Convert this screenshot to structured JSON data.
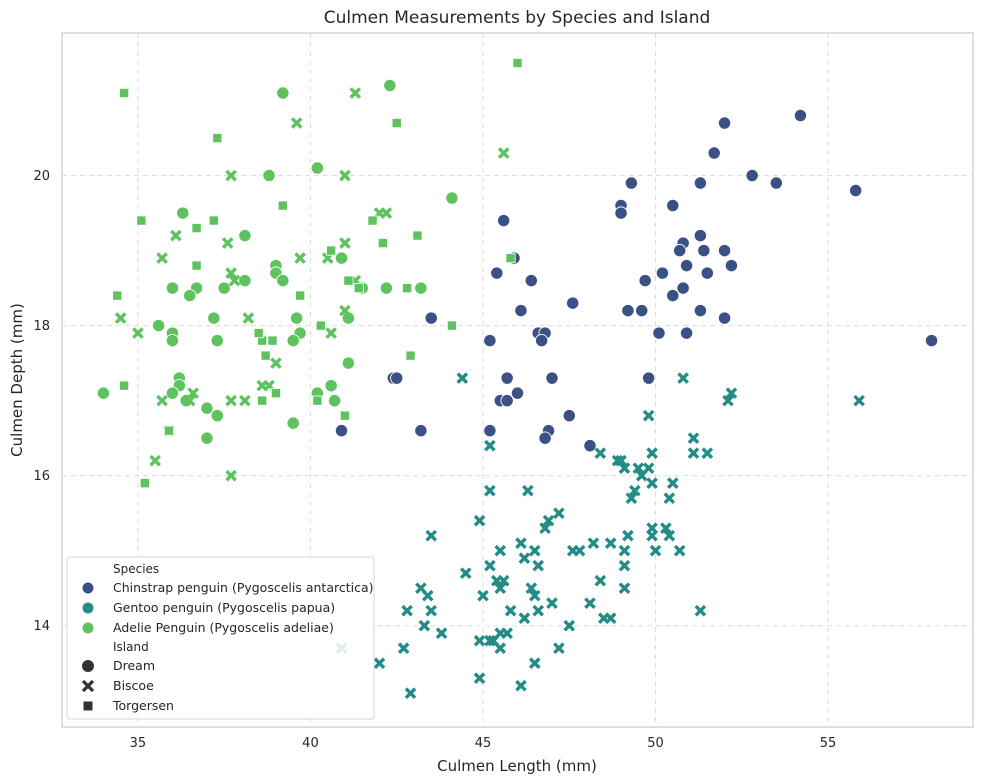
{
  "chart_data": {
    "type": "scatter",
    "title": "Culmen Measurements by Species and Island",
    "xlabel": "Culmen Length (mm)",
    "ylabel": "Culmen Depth (mm)",
    "xlim": [
      32.8,
      59.2
    ],
    "ylim": [
      12.65,
      21.9
    ],
    "xticks": [
      35,
      40,
      45,
      50,
      55
    ],
    "yticks": [
      14,
      16,
      18,
      20
    ],
    "grid": true,
    "legend_placement": "lower-left",
    "colors": {
      "Chinstrap": "#3b5185",
      "Gentoo": "#238c86",
      "Adelie": "#5ec25e"
    },
    "legend": {
      "species_title": "Species",
      "species": [
        {
          "key": "Chinstrap",
          "label": "Chinstrap penguin (Pygoscelis antarctica)"
        },
        {
          "key": "Gentoo",
          "label": "Gentoo penguin (Pygoscelis papua)"
        },
        {
          "key": "Adelie",
          "label": "Adelie Penguin (Pygoscelis adeliae)"
        }
      ],
      "island_title": "Island",
      "islands": [
        {
          "key": "Dream",
          "label": "Dream",
          "marker": "circle"
        },
        {
          "key": "Biscoe",
          "label": "Biscoe",
          "marker": "x"
        },
        {
          "key": "Torgersen",
          "label": "Torgersen",
          "marker": "square"
        }
      ]
    },
    "series": [
      {
        "species": "Chinstrap",
        "island": "Dream",
        "points": [
          [
            54.2,
            20.8
          ],
          [
            52.0,
            20.7
          ],
          [
            51.7,
            20.3
          ],
          [
            52.8,
            20.0
          ],
          [
            53.5,
            19.9
          ],
          [
            51.3,
            19.9
          ],
          [
            49.3,
            19.9
          ],
          [
            55.8,
            19.8
          ],
          [
            50.5,
            19.6
          ],
          [
            49.0,
            19.6
          ],
          [
            49.0,
            19.5
          ],
          [
            45.6,
            19.4
          ],
          [
            51.3,
            19.2
          ],
          [
            50.8,
            19.1
          ],
          [
            50.7,
            19.0
          ],
          [
            51.4,
            19.0
          ],
          [
            52.0,
            19.0
          ],
          [
            45.9,
            18.9
          ],
          [
            50.9,
            18.8
          ],
          [
            52.2,
            18.8
          ],
          [
            45.4,
            18.7
          ],
          [
            50.2,
            18.7
          ],
          [
            51.5,
            18.7
          ],
          [
            46.4,
            18.6
          ],
          [
            49.7,
            18.6
          ],
          [
            50.8,
            18.5
          ],
          [
            50.5,
            18.4
          ],
          [
            47.6,
            18.3
          ],
          [
            46.1,
            18.2
          ],
          [
            49.2,
            18.2
          ],
          [
            49.6,
            18.2
          ],
          [
            51.3,
            18.2
          ],
          [
            43.5,
            18.1
          ],
          [
            52.0,
            18.1
          ],
          [
            50.1,
            17.9
          ],
          [
            50.9,
            17.9
          ],
          [
            46.6,
            17.9
          ],
          [
            46.8,
            17.9
          ],
          [
            46.7,
            17.8
          ],
          [
            45.2,
            17.8
          ],
          [
            58.0,
            17.8
          ],
          [
            45.7,
            17.3
          ],
          [
            42.4,
            17.3
          ],
          [
            42.5,
            17.3
          ],
          [
            47.0,
            17.3
          ],
          [
            49.8,
            17.3
          ],
          [
            46.0,
            17.1
          ],
          [
            45.5,
            17.0
          ],
          [
            45.7,
            17.0
          ],
          [
            47.5,
            16.8
          ],
          [
            40.9,
            16.6
          ],
          [
            43.2,
            16.6
          ],
          [
            45.2,
            16.6
          ],
          [
            46.9,
            16.6
          ],
          [
            46.8,
            16.5
          ],
          [
            48.1,
            16.4
          ]
        ]
      },
      {
        "species": "Gentoo",
        "island": "Biscoe",
        "points": [
          [
            50.8,
            17.3
          ],
          [
            44.4,
            17.3
          ],
          [
            52.2,
            17.1
          ],
          [
            52.1,
            17.0
          ],
          [
            55.9,
            17.0
          ],
          [
            49.8,
            16.8
          ],
          [
            51.1,
            16.5
          ],
          [
            45.2,
            16.4
          ],
          [
            49.9,
            16.3
          ],
          [
            51.1,
            16.3
          ],
          [
            51.5,
            16.3
          ],
          [
            48.4,
            16.3
          ],
          [
            48.9,
            16.2
          ],
          [
            49.1,
            16.1
          ],
          [
            49.8,
            16.1
          ],
          [
            49.0,
            16.2
          ],
          [
            49.5,
            16.1
          ],
          [
            49.6,
            16.0
          ],
          [
            49.9,
            15.9
          ],
          [
            50.5,
            15.9
          ],
          [
            45.2,
            15.8
          ],
          [
            46.3,
            15.8
          ],
          [
            49.4,
            15.8
          ],
          [
            49.3,
            15.7
          ],
          [
            50.4,
            15.7
          ],
          [
            47.2,
            15.5
          ],
          [
            46.9,
            15.4
          ],
          [
            44.9,
            15.4
          ],
          [
            46.8,
            15.3
          ],
          [
            49.9,
            15.3
          ],
          [
            50.3,
            15.3
          ],
          [
            43.5,
            15.2
          ],
          [
            49.2,
            15.2
          ],
          [
            49.9,
            15.2
          ],
          [
            50.4,
            15.2
          ],
          [
            45.2,
            14.8
          ],
          [
            46.1,
            15.1
          ],
          [
            48.2,
            15.1
          ],
          [
            48.7,
            15.1
          ],
          [
            47.6,
            15.0
          ],
          [
            47.8,
            15.0
          ],
          [
            49.1,
            15.0
          ],
          [
            50.0,
            15.0
          ],
          [
            50.7,
            15.0
          ],
          [
            45.5,
            15.0
          ],
          [
            46.5,
            15.0
          ],
          [
            46.2,
            14.9
          ],
          [
            49.1,
            14.8
          ],
          [
            44.5,
            14.7
          ],
          [
            46.6,
            14.8
          ],
          [
            45.6,
            14.6
          ],
          [
            48.4,
            14.6
          ],
          [
            45.4,
            14.6
          ],
          [
            46.4,
            14.5
          ],
          [
            45.5,
            14.5
          ],
          [
            49.1,
            14.5
          ],
          [
            43.2,
            14.5
          ],
          [
            45.0,
            14.4
          ],
          [
            46.5,
            14.4
          ],
          [
            43.4,
            14.4
          ],
          [
            47.0,
            14.3
          ],
          [
            48.1,
            14.3
          ],
          [
            46.6,
            14.2
          ],
          [
            43.5,
            14.2
          ],
          [
            42.8,
            14.2
          ],
          [
            45.8,
            14.2
          ],
          [
            51.3,
            14.2
          ],
          [
            46.2,
            14.1
          ],
          [
            48.5,
            14.1
          ],
          [
            48.7,
            14.1
          ],
          [
            47.5,
            14.0
          ],
          [
            43.3,
            14.0
          ],
          [
            45.7,
            13.9
          ],
          [
            43.8,
            13.9
          ],
          [
            45.5,
            13.9
          ],
          [
            45.2,
            13.8
          ],
          [
            44.9,
            13.8
          ],
          [
            45.3,
            13.8
          ],
          [
            45.5,
            13.7
          ],
          [
            47.2,
            13.7
          ],
          [
            42.7,
            13.7
          ],
          [
            40.9,
            13.7
          ],
          [
            42.0,
            13.5
          ],
          [
            46.5,
            13.5
          ],
          [
            44.9,
            13.3
          ],
          [
            46.1,
            13.2
          ],
          [
            42.9,
            13.1
          ]
        ]
      },
      {
        "species": "Adelie",
        "island": "Dream",
        "points": [
          [
            42.3,
            21.2
          ],
          [
            39.2,
            21.1
          ],
          [
            40.2,
            20.1
          ],
          [
            38.8,
            20.0
          ],
          [
            44.1,
            19.7
          ],
          [
            36.3,
            19.5
          ],
          [
            38.1,
            19.2
          ],
          [
            39.0,
            18.8
          ],
          [
            40.9,
            18.9
          ],
          [
            39.0,
            18.7
          ],
          [
            38.1,
            18.6
          ],
          [
            39.2,
            18.6
          ],
          [
            36.0,
            18.5
          ],
          [
            36.7,
            18.5
          ],
          [
            37.5,
            18.5
          ],
          [
            41.5,
            18.5
          ],
          [
            42.2,
            18.5
          ],
          [
            43.2,
            18.5
          ],
          [
            36.5,
            18.4
          ],
          [
            35.6,
            18.0
          ],
          [
            36.0,
            17.9
          ],
          [
            37.3,
            17.8
          ],
          [
            36.0,
            17.8
          ],
          [
            37.2,
            18.1
          ],
          [
            39.6,
            18.1
          ],
          [
            41.1,
            18.1
          ],
          [
            39.7,
            17.9
          ],
          [
            39.5,
            17.8
          ],
          [
            41.1,
            17.5
          ],
          [
            36.2,
            17.3
          ],
          [
            36.2,
            17.2
          ],
          [
            40.6,
            17.2
          ],
          [
            34.0,
            17.1
          ],
          [
            36.0,
            17.1
          ],
          [
            40.2,
            17.1
          ],
          [
            36.4,
            17.0
          ],
          [
            40.7,
            17.0
          ],
          [
            37.0,
            16.9
          ],
          [
            37.3,
            16.8
          ],
          [
            39.5,
            16.7
          ],
          [
            37.0,
            16.5
          ]
        ]
      },
      {
        "species": "Adelie",
        "island": "Biscoe",
        "points": [
          [
            41.3,
            21.1
          ],
          [
            39.6,
            20.7
          ],
          [
            45.6,
            20.3
          ],
          [
            41.0,
            20.0
          ],
          [
            37.7,
            20.0
          ],
          [
            42.2,
            19.5
          ],
          [
            42.0,
            19.5
          ],
          [
            36.1,
            19.2
          ],
          [
            37.6,
            19.1
          ],
          [
            41.0,
            19.1
          ],
          [
            39.7,
            18.9
          ],
          [
            35.7,
            18.9
          ],
          [
            40.5,
            18.9
          ],
          [
            41.3,
            18.6
          ],
          [
            37.8,
            18.6
          ],
          [
            37.7,
            18.7
          ],
          [
            34.5,
            18.1
          ],
          [
            41.0,
            18.2
          ],
          [
            38.2,
            18.1
          ],
          [
            35.0,
            17.9
          ],
          [
            40.6,
            17.9
          ],
          [
            37.7,
            17.0
          ],
          [
            38.8,
            17.2
          ],
          [
            38.6,
            17.2
          ],
          [
            39.0,
            17.5
          ],
          [
            36.6,
            17.1
          ],
          [
            36.5,
            17.0
          ],
          [
            35.7,
            17.0
          ],
          [
            35.9,
            16.6
          ],
          [
            38.1,
            17.0
          ],
          [
            35.5,
            16.2
          ],
          [
            37.7,
            16.0
          ]
        ]
      },
      {
        "species": "Adelie",
        "island": "Torgersen",
        "points": [
          [
            34.6,
            21.1
          ],
          [
            46.0,
            21.5
          ],
          [
            37.3,
            20.5
          ],
          [
            42.5,
            20.7
          ],
          [
            39.2,
            19.6
          ],
          [
            35.1,
            19.4
          ],
          [
            37.2,
            19.4
          ],
          [
            36.7,
            19.3
          ],
          [
            41.8,
            19.4
          ],
          [
            43.1,
            19.2
          ],
          [
            42.1,
            19.1
          ],
          [
            40.6,
            19.0
          ],
          [
            45.8,
            18.9
          ],
          [
            36.7,
            18.8
          ],
          [
            41.1,
            18.6
          ],
          [
            34.4,
            18.4
          ],
          [
            39.7,
            18.4
          ],
          [
            42.8,
            18.5
          ],
          [
            41.4,
            18.5
          ],
          [
            40.3,
            18.0
          ],
          [
            44.1,
            18.0
          ],
          [
            38.6,
            17.8
          ],
          [
            38.9,
            17.8
          ],
          [
            38.5,
            17.9
          ],
          [
            42.9,
            17.6
          ],
          [
            38.7,
            17.6
          ],
          [
            39.0,
            17.1
          ],
          [
            34.6,
            17.2
          ],
          [
            38.6,
            17.0
          ],
          [
            40.2,
            17.0
          ],
          [
            41.0,
            16.8
          ],
          [
            35.9,
            16.6
          ],
          [
            35.2,
            15.9
          ]
        ]
      }
    ]
  }
}
